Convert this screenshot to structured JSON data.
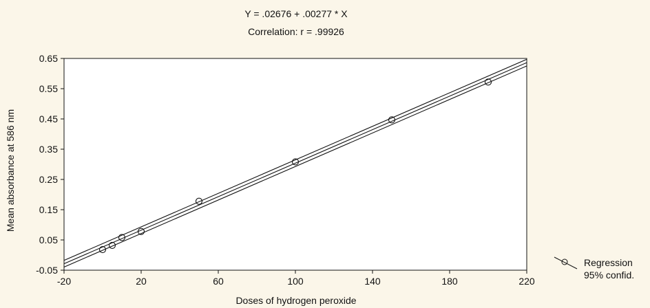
{
  "chart_data": {
    "type": "scatter",
    "title": "Y = .02676 + .00277 * X",
    "subtitle": "Correlation: r = .99926",
    "xlabel": "Doses of hydrogen peroxide",
    "ylabel": "Mean absorbance at 586 nm",
    "xlim": [
      -20,
      220
    ],
    "ylim": [
      -0.05,
      0.65
    ],
    "xticks": [
      "-20",
      "20",
      "60",
      "100",
      "140",
      "180",
      "220"
    ],
    "yticks": [
      "-0.05",
      "0.05",
      "0.15",
      "0.25",
      "0.35",
      "0.45",
      "0.55",
      "0.65"
    ],
    "grid": false,
    "legend_position": "bottom-right",
    "series": [
      {
        "name": "Regression",
        "x": [
          0,
          5,
          10,
          20,
          50,
          100,
          150,
          200
        ],
        "y": [
          0.018,
          0.032,
          0.058,
          0.078,
          0.178,
          0.308,
          0.447,
          0.572
        ]
      }
    ],
    "regression": {
      "intercept": 0.02676,
      "slope": 0.00277
    },
    "confidence": {
      "label": "95% confid.",
      "half_width": 0.011
    },
    "colors": {
      "background": "#fbf6e9",
      "ink": "#111111"
    }
  }
}
